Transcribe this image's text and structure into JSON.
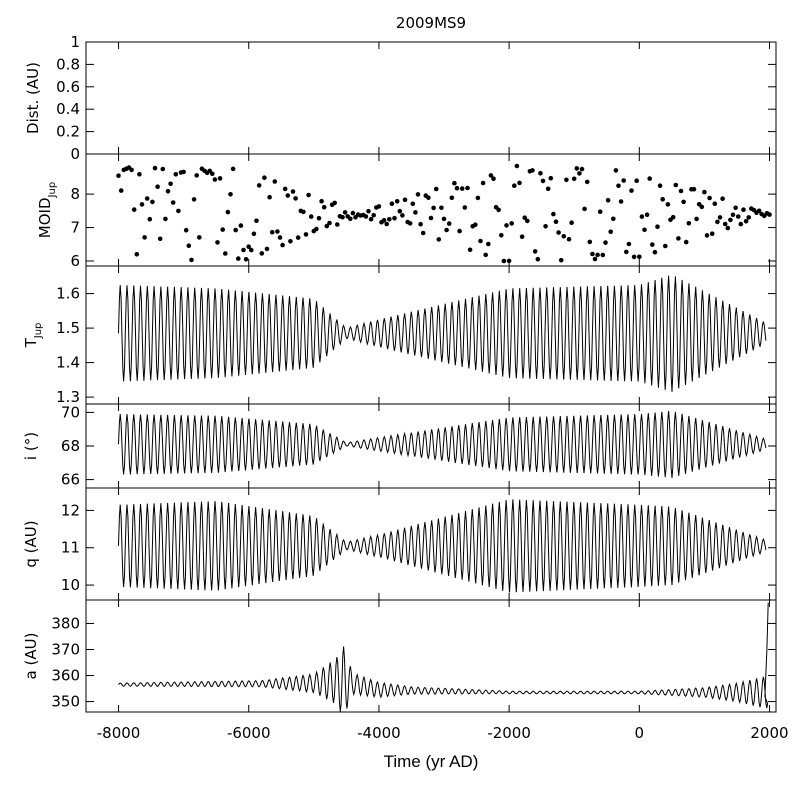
{
  "figure": {
    "title": "2009MS9",
    "xlabel": "Time (yr AD)",
    "xlim": [
      -8500,
      2100
    ],
    "x_ticks": [
      -8000,
      -6000,
      -4000,
      -2000,
      0,
      2000
    ],
    "x_tick_labels": [
      "-8000",
      "-6000",
      "-4000",
      "-2000",
      "0",
      "2000"
    ]
  },
  "chart_data": [
    {
      "type": "scatter",
      "ylabel": "Dist. (AU)",
      "ylim": [
        0,
        1
      ],
      "y_ticks": [
        0,
        0.2,
        0.4,
        0.6,
        0.8,
        1
      ],
      "y_tick_labels": [
        "0",
        "0.2",
        "0.4",
        "0.6",
        "0.8",
        "1"
      ],
      "points": []
    },
    {
      "type": "scatter",
      "ylabel": "MOID",
      "ylabel_sub": "Jup",
      "ylim": [
        5.85,
        9.2
      ],
      "y_ticks": [
        6,
        7,
        8
      ],
      "y_tick_labels": [
        "6",
        "7",
        "8"
      ],
      "x_start": -8000,
      "x_end": 2000,
      "center": 7.4,
      "envelope": [
        [
          -8000,
          1.4
        ],
        [
          -6000,
          1.35
        ],
        [
          -4300,
          0.05
        ],
        [
          -2000,
          1.45
        ],
        [
          0,
          1.3
        ],
        [
          2000,
          0.02
        ]
      ],
      "point_spacing_yr": 40
    },
    {
      "type": "line",
      "ylabel": "T",
      "ylabel_sub": "Jup",
      "ylim": [
        1.28,
        1.68
      ],
      "y_ticks": [
        1.3,
        1.4,
        1.5,
        1.6
      ],
      "y_tick_labels": [
        "1.3",
        "1.4",
        "1.5",
        "1.6"
      ],
      "x_start": -8000,
      "x_end": 1950,
      "center": 1.485,
      "period_yr": 104,
      "envelope": [
        [
          -8000,
          0.14
        ],
        [
          -6500,
          0.13
        ],
        [
          -5000,
          0.1
        ],
        [
          -4500,
          0.015
        ],
        [
          -4000,
          0.04
        ],
        [
          -2000,
          0.13
        ],
        [
          0,
          0.14
        ],
        [
          500,
          0.17
        ],
        [
          1950,
          0.03
        ]
      ]
    },
    {
      "type": "line",
      "ylabel": "i (°)",
      "ylim": [
        65.5,
        70.5
      ],
      "y_ticks": [
        66,
        68,
        70
      ],
      "y_tick_labels": [
        "66",
        "68",
        "70"
      ],
      "x_start": -8000,
      "x_end": 1950,
      "center": 68.1,
      "period_yr": 104,
      "envelope": [
        [
          -8000,
          1.8
        ],
        [
          -6500,
          1.7
        ],
        [
          -5000,
          1.2
        ],
        [
          -4500,
          0.1
        ],
        [
          -4000,
          0.4
        ],
        [
          -2000,
          1.6
        ],
        [
          0,
          1.8
        ],
        [
          500,
          2.0
        ],
        [
          1950,
          0.3
        ]
      ]
    },
    {
      "type": "line",
      "ylabel": "q (AU)",
      "ylim": [
        9.6,
        12.6
      ],
      "y_ticks": [
        10,
        11,
        12
      ],
      "y_tick_labels": [
        "10",
        "11",
        "12"
      ],
      "x_start": -8000,
      "x_end": 1950,
      "center": 11.05,
      "period_yr": 104,
      "envelope": [
        [
          -8000,
          1.1
        ],
        [
          -6500,
          1.2
        ],
        [
          -5000,
          0.8
        ],
        [
          -4500,
          0.1
        ],
        [
          -4000,
          0.3
        ],
        [
          -2000,
          1.25
        ],
        [
          0,
          1.1
        ],
        [
          500,
          1.05
        ],
        [
          1950,
          0.15
        ]
      ]
    },
    {
      "type": "line",
      "ylabel": "a (AU)",
      "ylim": [
        346,
        389
      ],
      "y_ticks": [
        350,
        360,
        370,
        380
      ],
      "y_tick_labels": [
        "350",
        "360",
        "370",
        "380"
      ],
      "x_start": -8000,
      "x_end": 1980,
      "center": 356.5,
      "period_yr": 104,
      "baseline": [
        [
          -8000,
          356.5
        ],
        [
          -5000,
          357
        ],
        [
          -4600,
          358
        ],
        [
          -4000,
          354.5
        ],
        [
          -2000,
          353.5
        ],
        [
          0,
          353.5
        ],
        [
          1900,
          353.5
        ]
      ],
      "envelope": [
        [
          -8000,
          0.6
        ],
        [
          -5800,
          1.2
        ],
        [
          -5000,
          3.5
        ],
        [
          -4650,
          9
        ],
        [
          -4550,
          14
        ],
        [
          -4400,
          4
        ],
        [
          -3500,
          1.4
        ],
        [
          -2000,
          0.5
        ],
        [
          0,
          0.5
        ],
        [
          1000,
          1.8
        ],
        [
          1500,
          3.5
        ],
        [
          1900,
          6
        ]
      ],
      "spike": [
        [
          1930,
          352
        ],
        [
          1960,
          370
        ],
        [
          1980,
          388
        ]
      ]
    }
  ]
}
